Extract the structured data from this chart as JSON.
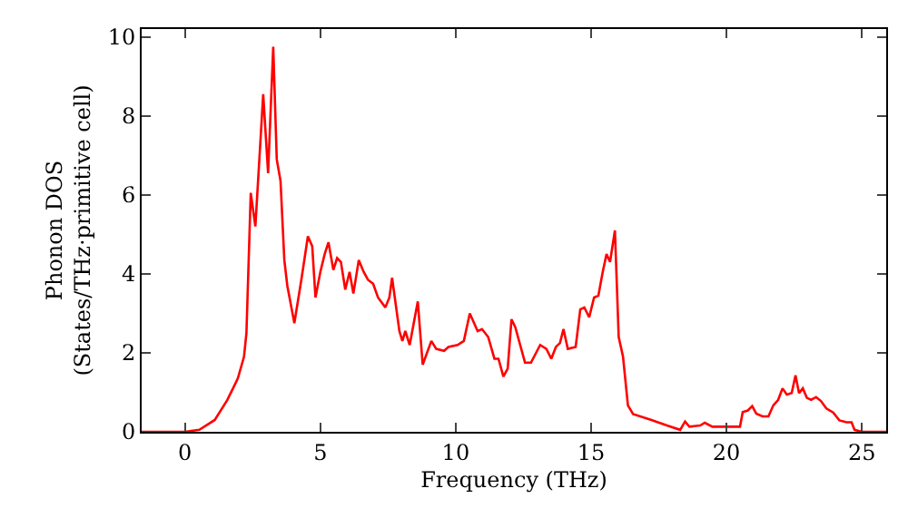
{
  "chart_data": {
    "type": "line",
    "xlabel": "Frequency (THz)",
    "ylabel": "Phonon DOS\n(States/THz·primitive cell)",
    "xlim": [
      -1.6,
      25.9
    ],
    "ylim": [
      0,
      10.2
    ],
    "xticks": [
      0,
      5,
      10,
      15,
      20,
      25
    ],
    "yticks": [
      0,
      2,
      4,
      6,
      8,
      10
    ],
    "marker": "none",
    "line_style": "solid",
    "series": [
      {
        "color": "#ff0000",
        "x": [
          -1.6,
          0,
          0.53,
          1.1,
          1.56,
          1.95,
          2.18,
          2.27,
          2.43,
          2.6,
          2.89,
          3.07,
          3.26,
          3.39,
          3.53,
          3.67,
          3.78,
          4.04,
          4.31,
          4.54,
          4.7,
          4.82,
          5.0,
          5.16,
          5.3,
          5.48,
          5.62,
          5.76,
          5.92,
          6.08,
          6.22,
          6.42,
          6.6,
          6.76,
          6.95,
          7.13,
          7.4,
          7.55,
          7.65,
          7.92,
          8.03,
          8.14,
          8.3,
          8.6,
          8.78,
          9.1,
          9.28,
          9.57,
          9.73,
          10.07,
          10.3,
          10.52,
          10.81,
          10.97,
          11.2,
          11.43,
          11.58,
          11.76,
          11.92,
          12.06,
          12.2,
          12.56,
          12.78,
          13.12,
          13.35,
          13.53,
          13.7,
          13.85,
          13.98,
          14.14,
          14.43,
          14.6,
          14.75,
          14.93,
          15.11,
          15.27,
          15.43,
          15.57,
          15.7,
          15.88,
          16.02,
          16.18,
          16.36,
          16.55,
          17.23,
          17.8,
          18.29,
          18.47,
          18.63,
          19.03,
          19.2,
          19.48,
          20.0,
          20.5,
          20.6,
          20.79,
          20.95,
          21.1,
          21.33,
          21.55,
          21.73,
          21.91,
          22.07,
          22.23,
          22.41,
          22.55,
          22.68,
          22.82,
          22.97,
          23.13,
          23.31,
          23.49,
          23.69,
          23.94,
          24.17,
          24.44,
          24.62,
          24.73,
          25.0,
          25.9
        ],
        "values": [
          0,
          0,
          0.05,
          0.3,
          0.8,
          1.35,
          1.9,
          2.5,
          6.05,
          5.2,
          8.55,
          6.55,
          9.75,
          6.9,
          6.35,
          4.35,
          3.7,
          2.75,
          3.9,
          4.95,
          4.7,
          3.4,
          4.05,
          4.5,
          4.8,
          4.1,
          4.4,
          4.3,
          3.6,
          4.05,
          3.5,
          4.35,
          4.05,
          3.85,
          3.75,
          3.4,
          3.15,
          3.4,
          3.9,
          2.55,
          2.3,
          2.55,
          2.2,
          3.3,
          1.7,
          2.3,
          2.1,
          2.05,
          2.15,
          2.2,
          2.3,
          3.0,
          2.55,
          2.6,
          2.4,
          1.85,
          1.85,
          1.4,
          1.6,
          2.85,
          2.65,
          1.75,
          1.75,
          2.2,
          2.1,
          1.85,
          2.15,
          2.25,
          2.6,
          2.1,
          2.15,
          3.1,
          3.15,
          2.9,
          3.4,
          3.45,
          4.05,
          4.5,
          4.3,
          5.1,
          2.4,
          1.9,
          0.67,
          0.45,
          0.3,
          0.16,
          0.05,
          0.26,
          0.13,
          0.16,
          0.23,
          0.13,
          0.13,
          0.13,
          0.5,
          0.54,
          0.65,
          0.46,
          0.39,
          0.39,
          0.67,
          0.81,
          1.1,
          0.94,
          0.98,
          1.43,
          0.98,
          1.1,
          0.86,
          0.81,
          0.88,
          0.78,
          0.59,
          0.49,
          0.29,
          0.24,
          0.24,
          0.05,
          0,
          0
        ]
      }
    ]
  }
}
